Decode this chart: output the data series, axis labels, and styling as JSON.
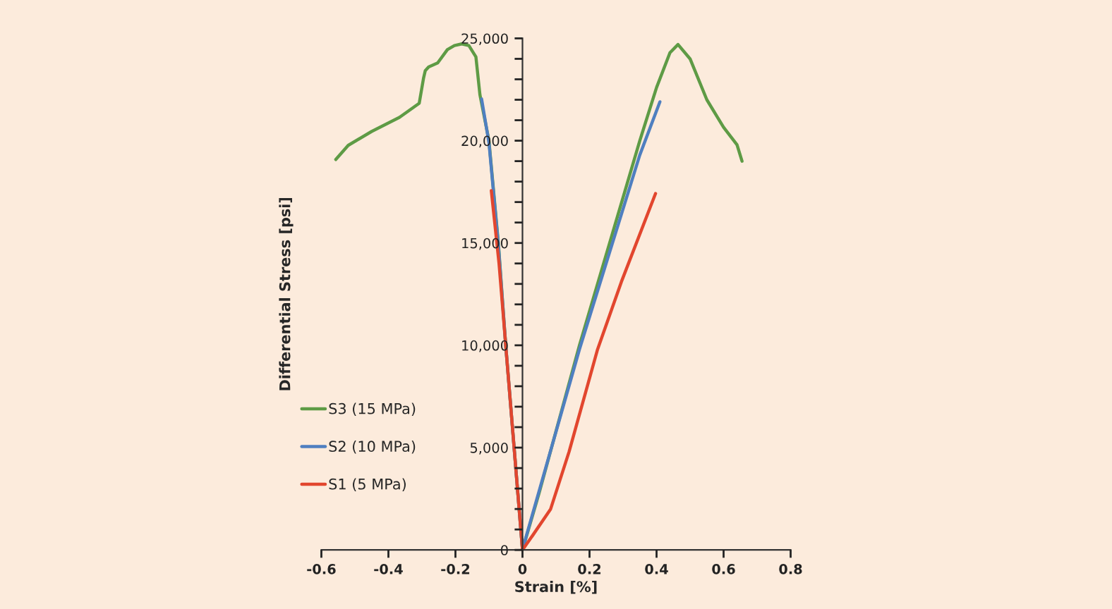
{
  "chart_data": {
    "type": "line",
    "xlabel": "Strain [%]",
    "ylabel": "Differential Stress [psi]",
    "xlim": [
      -0.6,
      0.8
    ],
    "xticks": [
      -0.6,
      -0.4,
      -0.2,
      0,
      0.2,
      0.4,
      0.6,
      0.8
    ],
    "ylim": [
      0,
      25000
    ],
    "yticks": [
      {
        "value": 0,
        "label": "0"
      },
      {
        "value": 1000,
        "label": null
      },
      {
        "value": 2000,
        "label": null
      },
      {
        "value": 3000,
        "label": null
      },
      {
        "value": 4000,
        "label": null
      },
      {
        "value": 5000,
        "label": "5,000"
      },
      {
        "value": 6000,
        "label": null
      },
      {
        "value": 7000,
        "label": null
      },
      {
        "value": 8000,
        "label": null
      },
      {
        "value": 9000,
        "label": null
      },
      {
        "value": 10000,
        "label": "10,000"
      },
      {
        "value": 11000,
        "label": null
      },
      {
        "value": 12000,
        "label": null
      },
      {
        "value": 13000,
        "label": null
      },
      {
        "value": 14000,
        "label": null
      },
      {
        "value": 15000,
        "label": "15,000"
      },
      {
        "value": 16000,
        "label": null
      },
      {
        "value": 17000,
        "label": null
      },
      {
        "value": 18000,
        "label": null
      },
      {
        "value": 19000,
        "label": null
      },
      {
        "value": 20000,
        "label": "20,000"
      },
      {
        "value": 21000,
        "label": null
      },
      {
        "value": 22000,
        "label": null
      },
      {
        "value": 23000,
        "label": null
      },
      {
        "value": 24000,
        "label": null
      },
      {
        "value": 25000,
        "label": "25,000"
      }
    ],
    "grid": false,
    "legend": "left",
    "marker": "none",
    "line_style": "solid",
    "series": [
      {
        "name": "S3 (15 MPa)",
        "color": "#5e9b45",
        "x": [
          -0.557,
          -0.52,
          -0.45,
          -0.367,
          -0.308,
          -0.295,
          -0.29,
          -0.28,
          -0.253,
          -0.224,
          -0.203,
          -0.181,
          -0.16,
          -0.139,
          -0.127,
          -0.1,
          -0.072,
          -0.05,
          0,
          0.05,
          0.17,
          0.35,
          0.4,
          0.44,
          0.464,
          0.5,
          0.55,
          0.6,
          0.64,
          0.655
        ],
        "values": [
          19080,
          19770,
          20450,
          21140,
          21830,
          23070,
          23420,
          23600,
          23800,
          24450,
          24650,
          24730,
          24650,
          24100,
          22250,
          20000,
          15000,
          10000,
          0,
          2800,
          10000,
          20000,
          22600,
          24300,
          24700,
          24000,
          22000,
          20650,
          19800,
          19000
        ]
      },
      {
        "name": "S2 (10 MPa)",
        "color": "#4f7fc0",
        "x": [
          -0.122,
          -0.1,
          -0.072,
          -0.05,
          0,
          0.01,
          0.17,
          0.35,
          0.41
        ],
        "values": [
          22040,
          19900,
          14900,
          10000,
          0,
          600,
          9800,
          19300,
          21900
        ]
      },
      {
        "name": "S1 (5 MPa)",
        "color": "#e2462e",
        "x": [
          -0.093,
          -0.07,
          -0.05,
          0,
          0.03,
          0.084,
          0.139,
          0.224,
          0.295,
          0.397
        ],
        "values": [
          17560,
          14000,
          10000,
          0,
          700,
          2000,
          4800,
          9800,
          13100,
          17420
        ]
      }
    ]
  }
}
